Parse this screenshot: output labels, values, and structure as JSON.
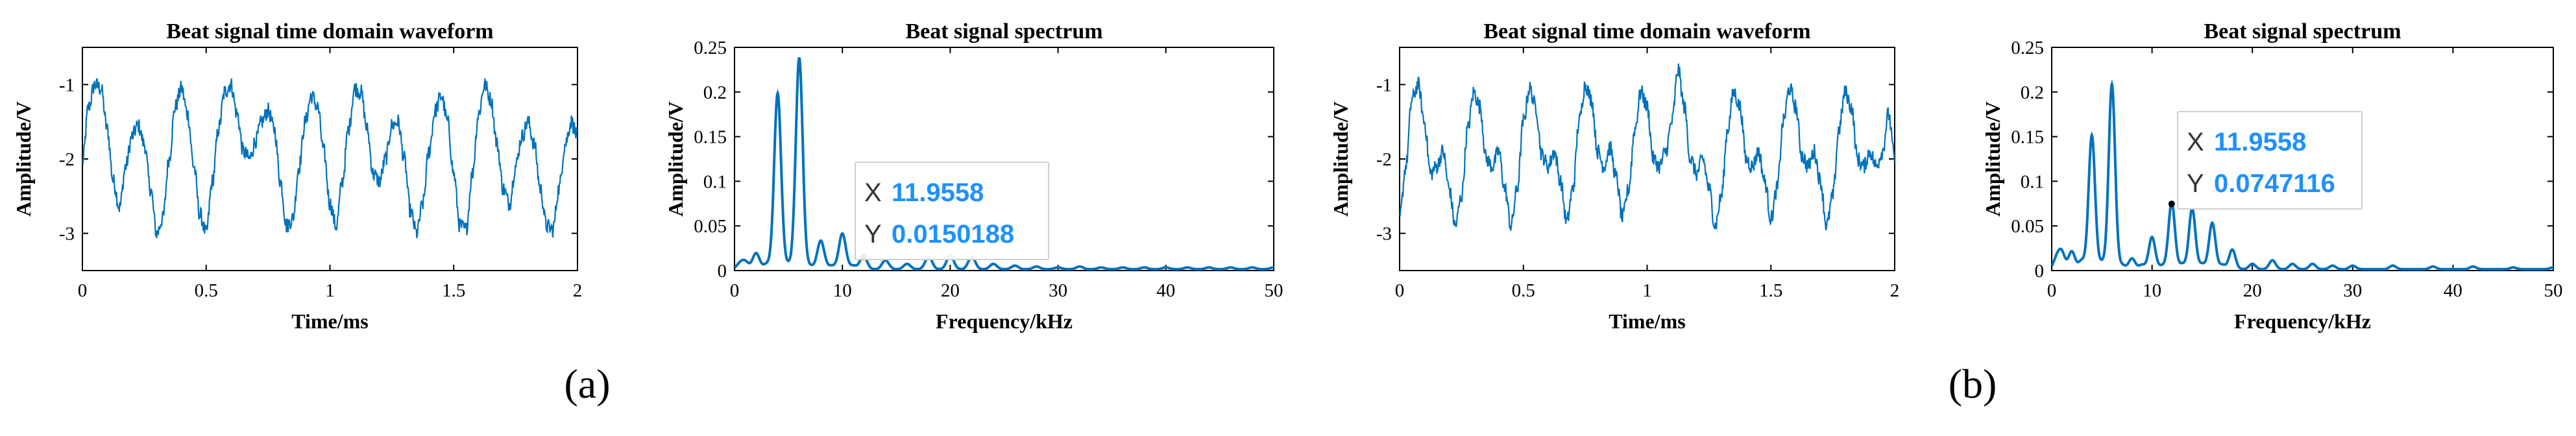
{
  "panel_labels": [
    "(a)",
    "(b)"
  ],
  "colors": {
    "line": "#0072BD",
    "tip_text": "#1e90ff"
  },
  "chart_data": [
    {
      "id": "a-time",
      "type": "line",
      "title": "Beat signal time domain waveform",
      "xlabel": "Time/ms",
      "ylabel": "Amplitude/V",
      "xlim": [
        0,
        2
      ],
      "ylim": [
        -3.5,
        -0.5
      ],
      "xticks": [
        0,
        0.5,
        1,
        1.5,
        2
      ],
      "xticklabels": [
        "0",
        "0.5",
        "1",
        "1.5",
        "2"
      ],
      "yticks": [
        -3,
        -2,
        -1
      ],
      "yticklabels": [
        "-3",
        "-2",
        "-1"
      ],
      "series": [
        {
          "x": [
            0,
            0.025,
            0.05,
            0.075,
            0.1,
            0.125,
            0.15,
            0.175,
            0.2,
            0.225,
            0.25,
            0.275,
            0.3,
            0.325,
            0.35,
            0.375,
            0.4,
            0.425,
            0.45,
            0.475,
            0.5,
            0.525,
            0.55,
            0.575,
            0.6,
            0.625,
            0.65,
            0.675,
            0.7,
            0.725,
            0.75,
            0.775,
            0.8,
            0.825,
            0.85,
            0.875,
            0.9,
            0.925,
            0.95,
            0.975,
            1.0,
            1.025,
            1.05,
            1.075,
            1.1,
            1.125,
            1.15,
            1.175,
            1.2,
            1.225,
            1.25,
            1.275,
            1.3,
            1.325,
            1.35,
            1.375,
            1.4,
            1.425,
            1.45,
            1.475,
            1.5,
            1.525,
            1.55,
            1.575,
            1.6,
            1.625,
            1.65,
            1.675,
            1.7,
            1.725,
            1.75,
            1.775,
            1.8,
            1.825,
            1.85,
            1.875,
            1.9,
            1.925,
            1.95,
            1.975,
            2.0
          ],
          "y": [
            -2.05,
            -1.3,
            -1.0,
            -1.05,
            -1.6,
            -2.3,
            -2.65,
            -2.1,
            -1.7,
            -1.55,
            -1.8,
            -2.4,
            -3.0,
            -2.8,
            -2.0,
            -1.3,
            -1.05,
            -1.4,
            -2.1,
            -2.75,
            -3.0,
            -2.3,
            -1.6,
            -1.1,
            -1.0,
            -1.4,
            -1.9,
            -2.0,
            -1.75,
            -1.5,
            -1.35,
            -1.6,
            -2.3,
            -2.9,
            -2.8,
            -2.1,
            -1.5,
            -1.15,
            -1.3,
            -1.9,
            -2.6,
            -2.9,
            -2.3,
            -1.6,
            -1.05,
            -1.1,
            -1.6,
            -2.2,
            -2.3,
            -2.0,
            -1.55,
            -1.5,
            -2.0,
            -2.7,
            -3.0,
            -2.6,
            -1.9,
            -1.35,
            -1.15,
            -1.5,
            -2.2,
            -2.9,
            -2.95,
            -2.2,
            -1.4,
            -1.0,
            -1.2,
            -1.8,
            -2.4,
            -2.6,
            -2.1,
            -1.7,
            -1.5,
            -1.8,
            -2.4,
            -2.9,
            -2.95,
            -2.4,
            -1.8,
            -1.5,
            -1.7
          ]
        }
      ]
    },
    {
      "id": "a-spec",
      "type": "line",
      "title": "Beat signal spectrum",
      "xlabel": "Frequency/kHz",
      "ylabel": "Amplitude/V",
      "xlim": [
        0,
        50
      ],
      "ylim": [
        0,
        0.25
      ],
      "xticks": [
        0,
        10,
        20,
        30,
        40,
        50
      ],
      "xticklabels": [
        "0",
        "10",
        "20",
        "30",
        "40",
        "50"
      ],
      "yticks": [
        0,
        0.05,
        0.1,
        0.15,
        0.2,
        0.25
      ],
      "yticklabels": [
        "0",
        "0.05",
        "0.1",
        "0.15",
        "0.2",
        "0.25"
      ],
      "peaks": [
        [
          0.5,
          0.006
        ],
        [
          1,
          0.008
        ],
        [
          2,
          0.018
        ],
        [
          3,
          0.006
        ],
        [
          4,
          0.197
        ],
        [
          5,
          0.006
        ],
        [
          6,
          0.237
        ],
        [
          7,
          0.004
        ],
        [
          8,
          0.032
        ],
        [
          9,
          0.004
        ],
        [
          10,
          0.04
        ],
        [
          11,
          0.004
        ],
        [
          11.96,
          0.015
        ],
        [
          14,
          0.01
        ],
        [
          16,
          0.006
        ],
        [
          18,
          0.014
        ],
        [
          20,
          0.016
        ],
        [
          22,
          0.014
        ],
        [
          24,
          0.006
        ],
        [
          26,
          0.004
        ],
        [
          28,
          0.003
        ],
        [
          30,
          0.002
        ],
        [
          32,
          0.003
        ],
        [
          34,
          0.002
        ],
        [
          36,
          0.002
        ],
        [
          38,
          0.002
        ],
        [
          40,
          0.002
        ],
        [
          42,
          0.002
        ],
        [
          44,
          0.002
        ],
        [
          46,
          0.002
        ],
        [
          48,
          0.002
        ],
        [
          50,
          0.002
        ]
      ],
      "datatip": {
        "x": 11.9558,
        "y": 0.0150188,
        "x_label": "X",
        "y_label": "Y",
        "x_text": "11.9558",
        "y_text": "0.0150188"
      }
    },
    {
      "id": "b-time",
      "type": "line",
      "title": "Beat signal time domain waveform",
      "xlabel": "Time/ms",
      "ylabel": "Amplitude/V",
      "xlim": [
        0,
        2
      ],
      "ylim": [
        -3.5,
        -0.5
      ],
      "xticks": [
        0,
        0.5,
        1,
        1.5,
        2
      ],
      "xticklabels": [
        "0",
        "0.5",
        "1",
        "1.5",
        "2"
      ],
      "yticks": [
        -3,
        -2,
        -1
      ],
      "yticklabels": [
        "-3",
        "-2",
        "-1"
      ],
      "series": [
        {
          "x": [
            0,
            0.025,
            0.05,
            0.075,
            0.1,
            0.125,
            0.15,
            0.175,
            0.2,
            0.225,
            0.25,
            0.275,
            0.3,
            0.325,
            0.35,
            0.375,
            0.4,
            0.425,
            0.45,
            0.475,
            0.5,
            0.525,
            0.55,
            0.575,
            0.6,
            0.625,
            0.65,
            0.675,
            0.7,
            0.725,
            0.75,
            0.775,
            0.8,
            0.825,
            0.85,
            0.875,
            0.9,
            0.925,
            0.95,
            0.975,
            1.0,
            1.025,
            1.05,
            1.075,
            1.1,
            1.125,
            1.15,
            1.175,
            1.2,
            1.225,
            1.25,
            1.275,
            1.3,
            1.325,
            1.35,
            1.375,
            1.4,
            1.425,
            1.45,
            1.475,
            1.5,
            1.525,
            1.55,
            1.575,
            1.6,
            1.625,
            1.65,
            1.675,
            1.7,
            1.725,
            1.75,
            1.775,
            1.8,
            1.825,
            1.85,
            1.875,
            1.9,
            1.925,
            1.95,
            1.975,
            2.0
          ],
          "y": [
            -2.8,
            -2.1,
            -1.2,
            -1.0,
            -1.5,
            -2.2,
            -2.1,
            -1.9,
            -2.4,
            -2.9,
            -2.5,
            -1.6,
            -1.1,
            -1.3,
            -2.0,
            -2.1,
            -1.9,
            -2.4,
            -2.9,
            -2.4,
            -1.5,
            -1.05,
            -1.3,
            -1.95,
            -2.1,
            -1.9,
            -2.3,
            -2.85,
            -2.4,
            -1.5,
            -1.0,
            -1.2,
            -1.9,
            -2.1,
            -1.85,
            -2.25,
            -2.8,
            -2.4,
            -1.6,
            -1.1,
            -1.3,
            -2.0,
            -2.1,
            -1.9,
            -1.5,
            -0.8,
            -1.3,
            -2.0,
            -2.2,
            -2.0,
            -2.4,
            -2.9,
            -2.5,
            -1.6,
            -1.1,
            -1.3,
            -2.0,
            -2.1,
            -1.9,
            -2.3,
            -2.8,
            -2.4,
            -1.5,
            -1.05,
            -1.3,
            -1.95,
            -2.1,
            -1.9,
            -2.3,
            -2.9,
            -2.5,
            -1.6,
            -1.1,
            -1.3,
            -2.0,
            -2.1,
            -1.9,
            -2.1,
            -1.9,
            -1.4,
            -2.0
          ]
        }
      ]
    },
    {
      "id": "b-spec",
      "type": "line",
      "title": "Beat signal spectrum",
      "xlabel": "Frequency/kHz",
      "ylabel": "Amplitude/V",
      "xlim": [
        0,
        50
      ],
      "ylim": [
        0,
        0.25
      ],
      "xticks": [
        0,
        10,
        20,
        30,
        40,
        50
      ],
      "xticklabels": [
        "0",
        "10",
        "20",
        "30",
        "40",
        "50"
      ],
      "yticks": [
        0,
        0.05,
        0.1,
        0.15,
        0.2,
        0.25
      ],
      "yticklabels": [
        "0",
        "0.05",
        "0.1",
        "0.15",
        "0.2",
        "0.25"
      ],
      "peaks": [
        [
          0.5,
          0.012
        ],
        [
          1,
          0.018
        ],
        [
          2,
          0.02
        ],
        [
          3,
          0.01
        ],
        [
          4,
          0.15
        ],
        [
          5,
          0.008
        ],
        [
          6,
          0.207
        ],
        [
          7,
          0.005
        ],
        [
          8,
          0.012
        ],
        [
          9,
          0.005
        ],
        [
          10,
          0.036
        ],
        [
          11,
          0.004
        ],
        [
          11.96,
          0.0747
        ],
        [
          13,
          0.006
        ],
        [
          14,
          0.068
        ],
        [
          15,
          0.006
        ],
        [
          16,
          0.052
        ],
        [
          17,
          0.005
        ],
        [
          18,
          0.022
        ],
        [
          20,
          0.006
        ],
        [
          22,
          0.01
        ],
        [
          24,
          0.006
        ],
        [
          26,
          0.006
        ],
        [
          28,
          0.004
        ],
        [
          30,
          0.004
        ],
        [
          34,
          0.004
        ],
        [
          38,
          0.003
        ],
        [
          42,
          0.003
        ],
        [
          46,
          0.002
        ],
        [
          50,
          0.002
        ]
      ],
      "datatip": {
        "x": 11.9558,
        "y": 0.0747116,
        "x_label": "X",
        "y_label": "Y",
        "x_text": "11.9558",
        "y_text": "0.0747116"
      }
    }
  ]
}
